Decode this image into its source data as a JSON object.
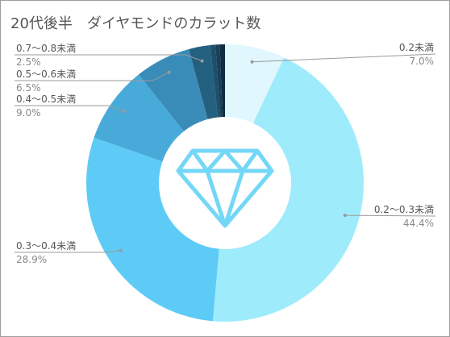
{
  "chart_data": {
    "type": "pie",
    "title": "20代後半　ダイヤモンドのカラット数",
    "donut": true,
    "center_icon": "diamond-icon",
    "slices": [
      {
        "label": "0.2未満",
        "pct_label": "7.0%",
        "value": 7.0,
        "color": "#dff7fd"
      },
      {
        "label": "0.2〜0.3未満",
        "pct_label": "44.4%",
        "value": 44.4,
        "color": "#9eecfb"
      },
      {
        "label": "0.3〜0.4未満",
        "pct_label": "28.9%",
        "value": 28.9,
        "color": "#5ecbf6"
      },
      {
        "label": "0.4〜0.5未満",
        "pct_label": "9.0%",
        "value": 9.0,
        "color": "#48aad9"
      },
      {
        "label": "0.5〜0.6未満",
        "pct_label": "6.5%",
        "value": 6.5,
        "color": "#3a8cb8"
      },
      {
        "label": "0.7〜0.8未満",
        "pct_label": "2.5%",
        "value": 2.5,
        "color": "#24607f"
      },
      {
        "label": "",
        "value": 0.6,
        "color": "#1d4e6a"
      },
      {
        "label": "",
        "value": 0.5,
        "color": "#173f58"
      },
      {
        "label": "",
        "value": 0.6,
        "color": "#0f2c40"
      }
    ],
    "label_side": [
      "right",
      "right",
      "left",
      "left",
      "left",
      "left",
      "",
      "",
      ""
    ]
  }
}
